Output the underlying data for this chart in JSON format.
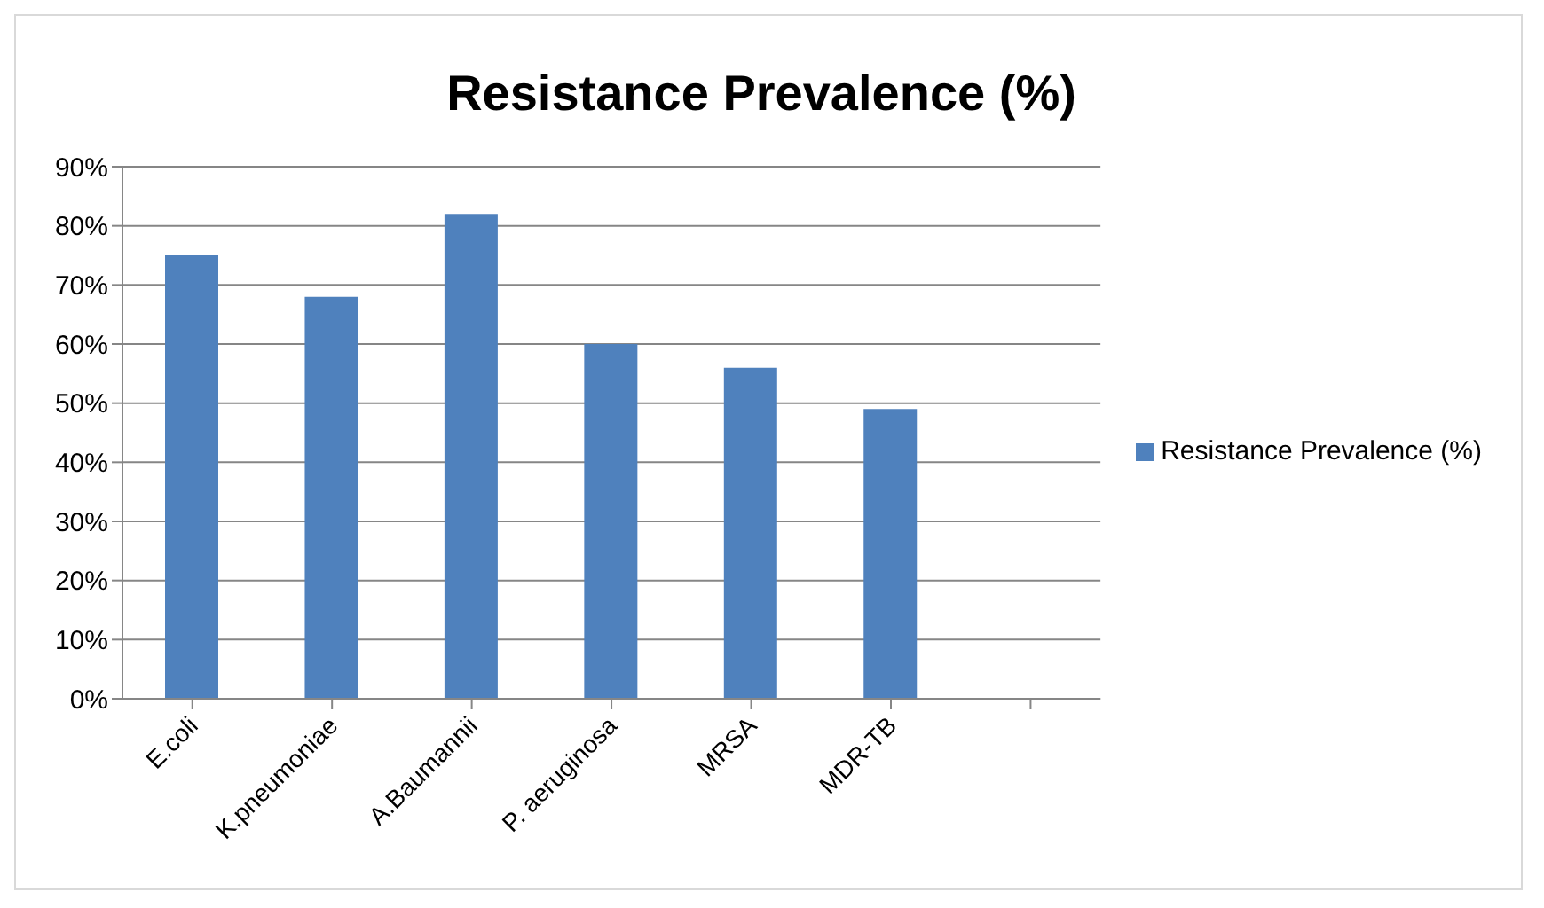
{
  "chart_data": {
    "type": "bar",
    "title": "Resistance Prevalence (%)",
    "categories": [
      "E.coli",
      "K.pneumoniae",
      "A.Baumannii",
      "P. aeruginosa",
      "MRSA",
      "MDR-TB",
      null
    ],
    "series": [
      {
        "name": "Resistance Prevalence (%)",
        "color": "#4f81bd",
        "values": [
          75,
          68,
          82,
          60,
          56,
          49,
          null
        ]
      }
    ],
    "ylim": [
      0,
      90
    ],
    "yticks": [
      {
        "value": 0,
        "label": "0%"
      },
      {
        "value": 10,
        "label": "10%"
      },
      {
        "value": 20,
        "label": "20%"
      },
      {
        "value": 30,
        "label": "30%"
      },
      {
        "value": 40,
        "label": "40%"
      },
      {
        "value": 50,
        "label": "50%"
      },
      {
        "value": 60,
        "label": "60%"
      },
      {
        "value": 70,
        "label": "70%"
      },
      {
        "value": 80,
        "label": "80%"
      },
      {
        "value": 90,
        "label": "90%"
      }
    ],
    "grid": "y",
    "legend": "right"
  }
}
